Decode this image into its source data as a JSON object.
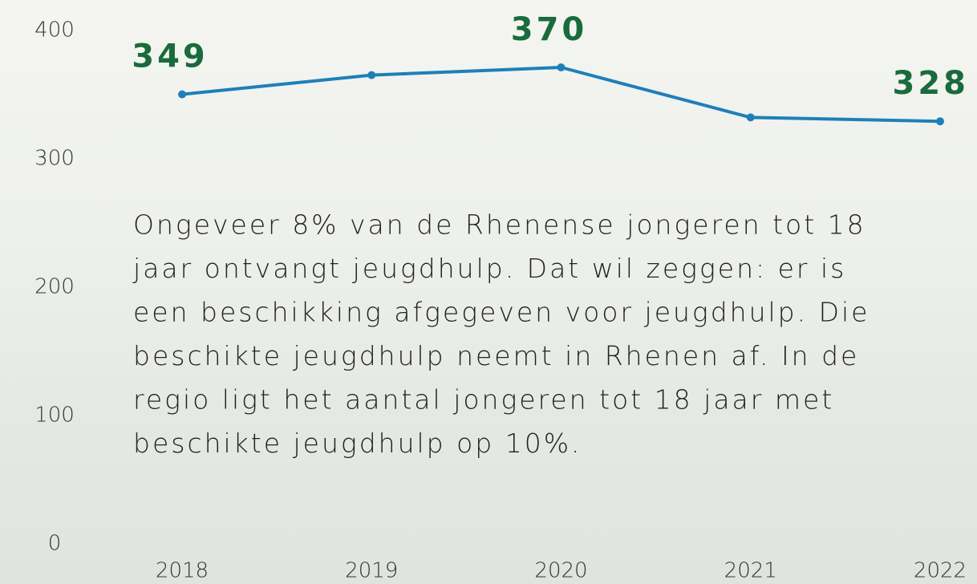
{
  "chart_data": {
    "type": "line",
    "categories": [
      "2018",
      "2019",
      "2020",
      "2021",
      "2022"
    ],
    "series": [
      {
        "color": "#1f7fb8",
        "values": [
          349,
          364,
          370,
          331,
          328
        ]
      }
    ],
    "value_labels": [
      "349",
      null,
      "370",
      null,
      "328"
    ],
    "label_color": "#1a6b3c",
    "ylim": [
      0,
      400
    ],
    "yticks": [
      0,
      100,
      200,
      300,
      400
    ],
    "grid": false,
    "annotation": [
      "Ongeveer 8% van de Rhenense jongeren tot 18",
      "jaar ontvangt jeugdhulp. Dat wil zeggen: er is",
      "een beschikking afgegeven voor jeugdhulp. Die",
      "beschikte jeugdhulp neemt in Rhenen af. In de",
      "regio ligt het aantal jongeren tot 18 jaar met",
      "beschikte jeugdhulp op 10%."
    ]
  }
}
